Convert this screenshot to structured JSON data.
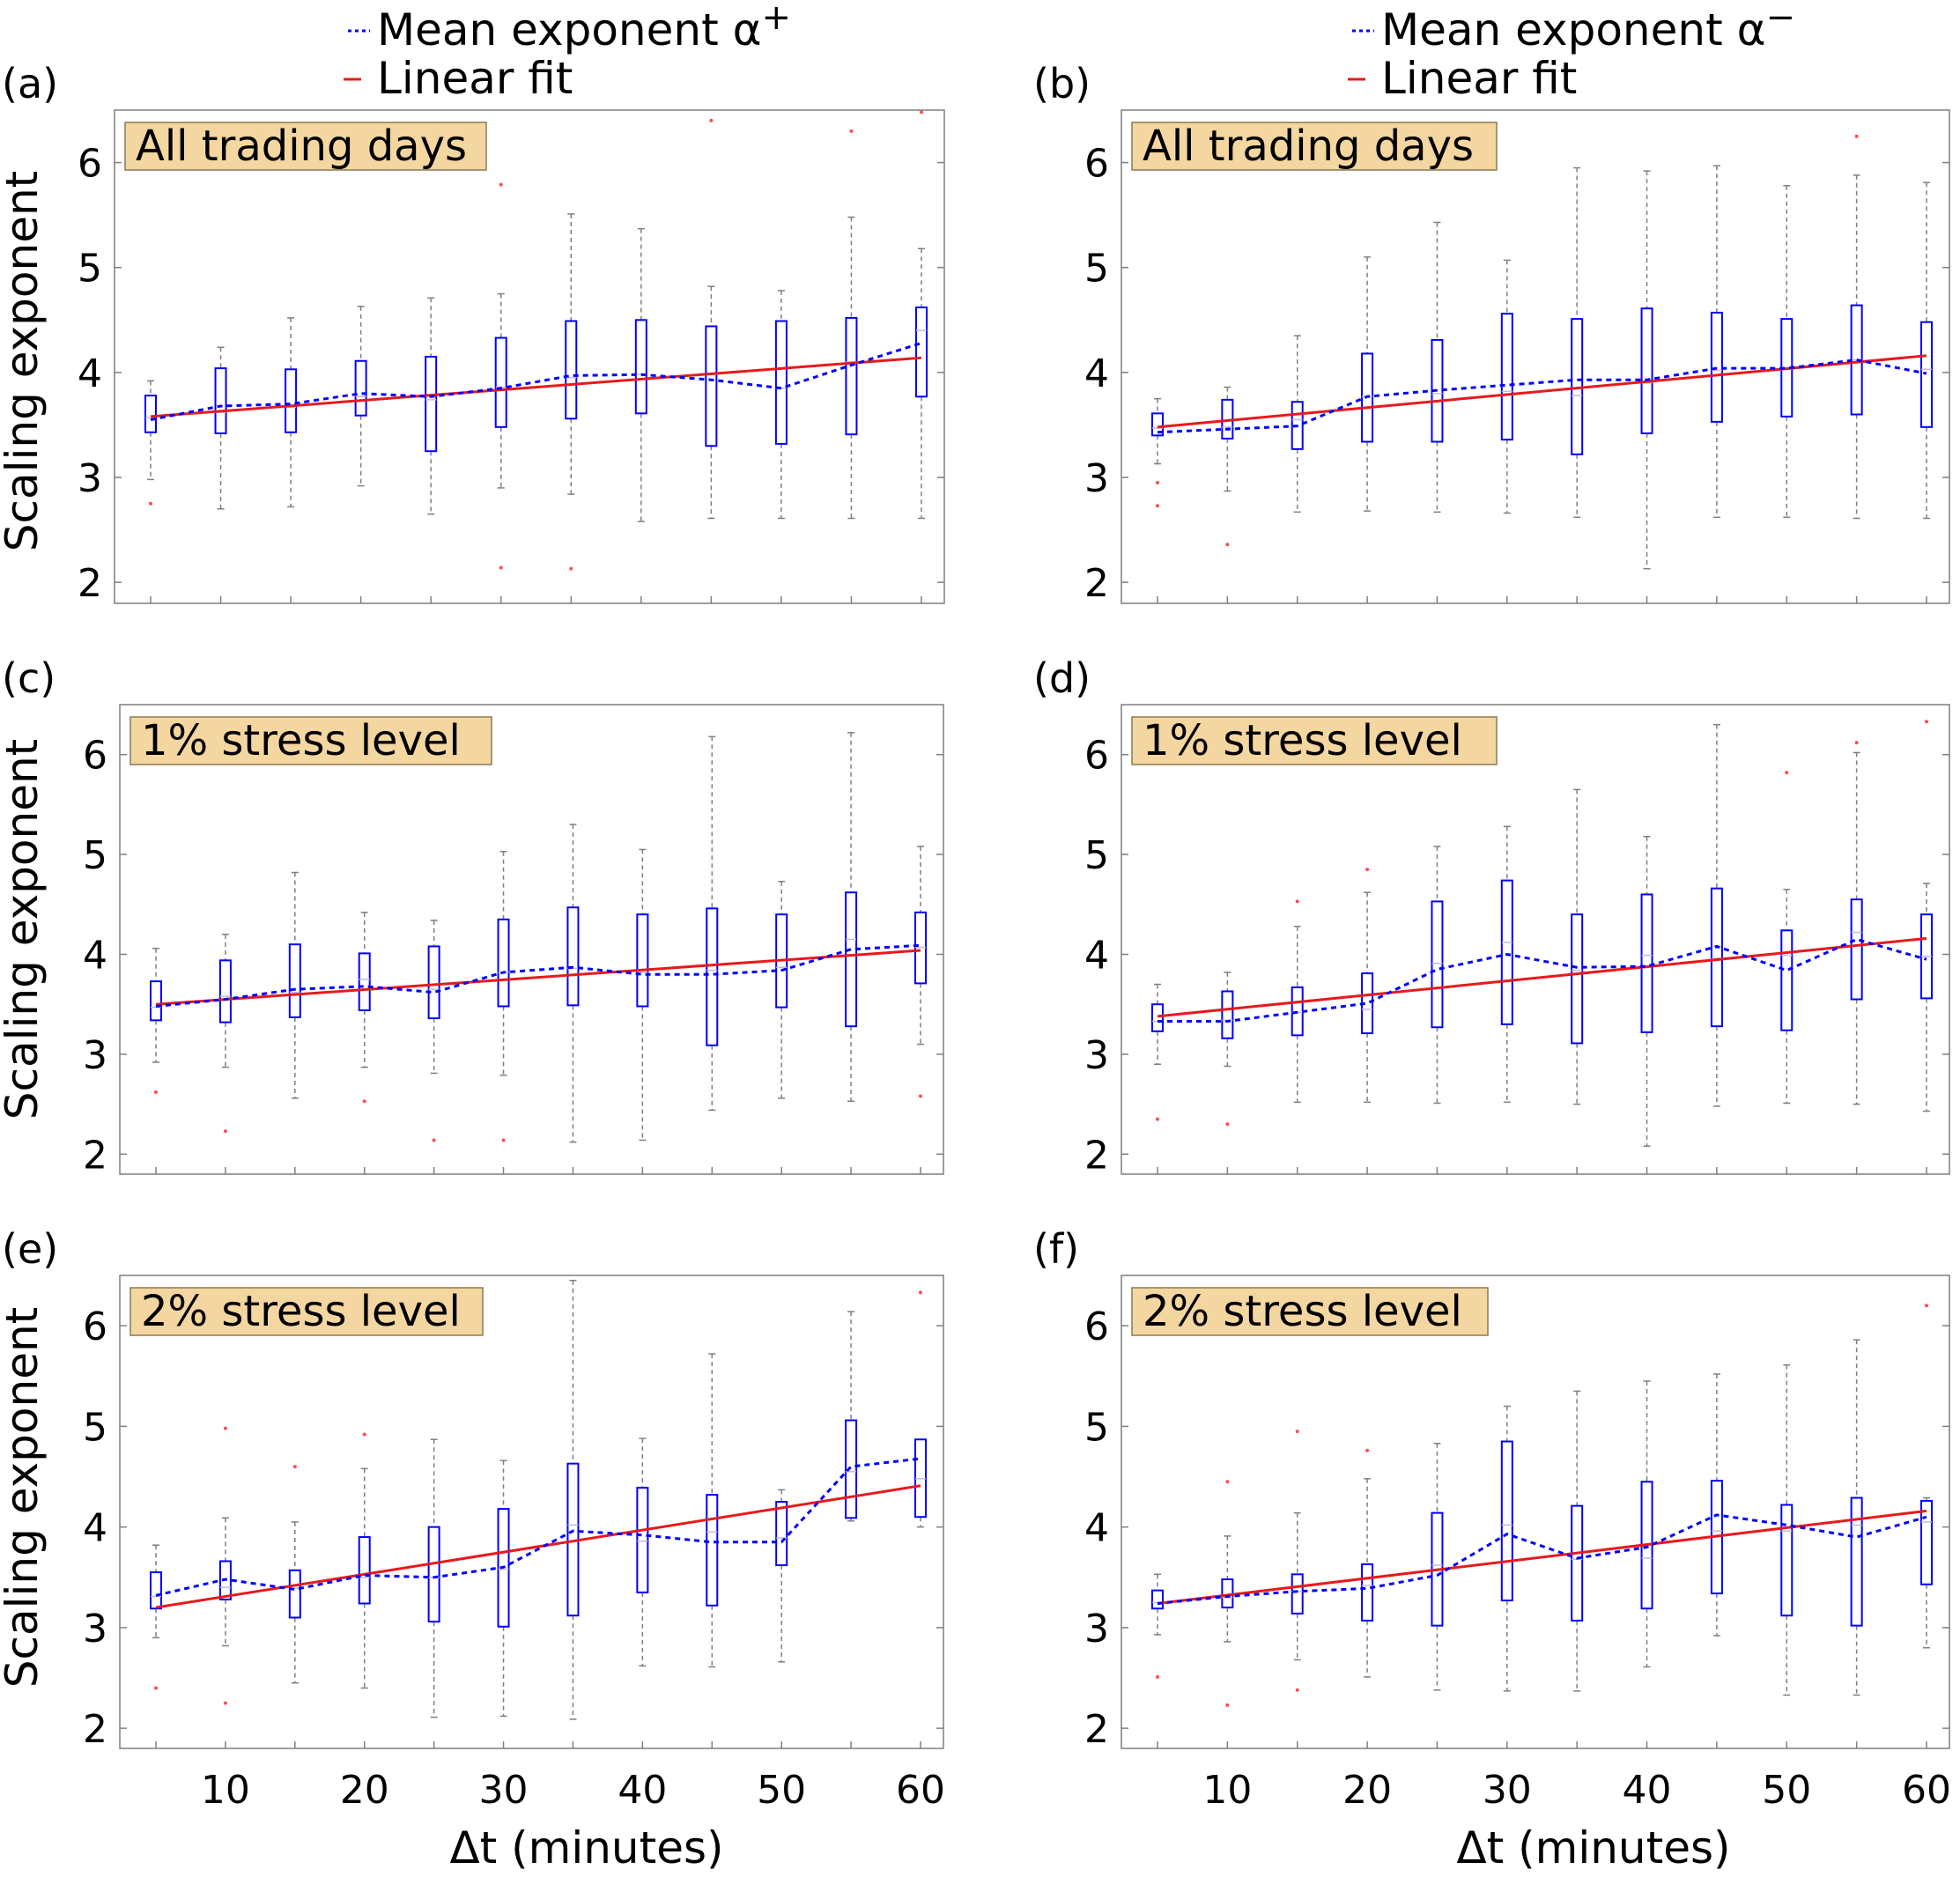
{
  "legends": [
    {
      "mean_label": "Mean exponent",
      "alpha": "α",
      "sign": "+",
      "fit_label": "Linear fit"
    },
    {
      "mean_label": "Mean exponent",
      "alpha": "α",
      "sign": "−",
      "fit_label": "Linear fit"
    }
  ],
  "axis": {
    "ylabel": "Scaling exponent",
    "xlabel": "Δt (minutes)",
    "ylim": [
      1.8,
      6.5
    ],
    "xlim": [
      0,
      62
    ],
    "yticks": [
      "2",
      "3",
      "4",
      "5",
      "6"
    ],
    "xticks": [
      "10",
      "20",
      "30",
      "40",
      "50",
      "60"
    ]
  },
  "colors": {
    "box": "#0000ff",
    "mean": "#0000ff",
    "fit": "#e8191c",
    "whisker": "#7f7f7f",
    "outlier": "#ff4d4d",
    "median": "#c8b8d8",
    "tag_fill": "#f4d6a0",
    "tag_border": "#8a7a55",
    "frame": "#7f7f7f"
  },
  "chart_data": [
    {
      "type": "box",
      "panel": "(a)",
      "tag": "All trading days",
      "x": [
        5,
        10,
        15,
        20,
        25,
        30,
        35,
        40,
        45,
        50,
        55,
        60
      ],
      "q1": [
        3.43,
        3.42,
        3.43,
        3.59,
        3.25,
        3.48,
        3.56,
        3.61,
        3.3,
        3.32,
        3.41,
        3.77
      ],
      "median": [
        3.57,
        3.62,
        3.67,
        3.77,
        3.74,
        3.86,
        3.95,
        3.98,
        3.98,
        3.85,
        4.1,
        4.4
      ],
      "q3": [
        3.78,
        4.04,
        4.03,
        4.11,
        4.15,
        4.33,
        4.49,
        4.5,
        4.44,
        4.49,
        4.52,
        4.62
      ],
      "wlo": [
        2.98,
        2.7,
        2.72,
        2.92,
        2.65,
        2.9,
        2.84,
        2.58,
        2.61,
        2.61,
        2.61,
        2.61
      ],
      "whi": [
        3.92,
        4.24,
        4.52,
        4.63,
        4.71,
        4.75,
        5.51,
        5.37,
        4.82,
        4.78,
        5.48,
        5.18
      ],
      "outliers": [
        [
          5,
          2.75
        ],
        [
          30,
          2.14
        ],
        [
          30,
          5.79
        ],
        [
          35,
          2.13
        ],
        [
          45,
          6.4
        ],
        [
          55,
          6.3
        ],
        [
          60,
          6.48
        ]
      ],
      "mean": [
        3.55,
        3.68,
        3.7,
        3.8,
        3.77,
        3.85,
        3.97,
        3.98,
        3.93,
        3.85,
        4.07,
        4.28
      ],
      "fit": {
        "x0": 5,
        "y0": 3.58,
        "x1": 60,
        "y1": 4.14
      }
    },
    {
      "type": "box",
      "panel": "(b)",
      "tag": "All trading days",
      "x": [
        5,
        10,
        15,
        20,
        25,
        30,
        35,
        40,
        45,
        50,
        55,
        60
      ],
      "q1": [
        3.4,
        3.37,
        3.27,
        3.34,
        3.34,
        3.36,
        3.22,
        3.42,
        3.53,
        3.58,
        3.6,
        3.48
      ],
      "median": [
        3.47,
        3.48,
        3.55,
        3.77,
        3.8,
        3.82,
        3.78,
        3.9,
        4.02,
        4.03,
        4.12,
        4.03
      ],
      "q3": [
        3.61,
        3.74,
        3.72,
        4.18,
        4.31,
        4.56,
        4.51,
        4.61,
        4.57,
        4.51,
        4.64,
        4.48
      ],
      "wlo": [
        3.13,
        2.87,
        2.67,
        2.68,
        2.67,
        2.66,
        2.62,
        2.13,
        2.62,
        2.62,
        2.61,
        2.61
      ],
      "whi": [
        3.75,
        3.86,
        4.35,
        5.1,
        5.43,
        5.07,
        5.95,
        5.92,
        5.97,
        5.78,
        5.88,
        5.81
      ],
      "outliers": [
        [
          5,
          2.95
        ],
        [
          5,
          2.73
        ],
        [
          10,
          2.36
        ],
        [
          55,
          6.25
        ]
      ],
      "mean": [
        3.43,
        3.46,
        3.49,
        3.77,
        3.83,
        3.88,
        3.93,
        3.93,
        4.04,
        4.04,
        4.12,
        3.99
      ],
      "fit": {
        "x0": 5,
        "y0": 3.48,
        "x1": 60,
        "y1": 4.16
      }
    },
    {
      "type": "box",
      "panel": "(c)",
      "tag": "1% stress level",
      "x": [
        5,
        10,
        15,
        20,
        25,
        30,
        35,
        40,
        45,
        50,
        55,
        60
      ],
      "q1": [
        3.34,
        3.32,
        3.37,
        3.44,
        3.36,
        3.48,
        3.49,
        3.48,
        3.09,
        3.47,
        3.28,
        3.71
      ],
      "median": [
        3.47,
        3.58,
        3.62,
        3.75,
        3.65,
        3.82,
        3.86,
        3.82,
        3.84,
        3.87,
        4.15,
        4.07
      ],
      "q3": [
        3.73,
        3.94,
        4.1,
        4.01,
        4.08,
        4.35,
        4.47,
        4.4,
        4.46,
        4.4,
        4.62,
        4.42
      ],
      "wlo": [
        2.92,
        2.87,
        2.56,
        2.87,
        2.81,
        2.79,
        2.12,
        2.14,
        2.44,
        2.56,
        2.53,
        3.1
      ],
      "whi": [
        4.06,
        4.2,
        4.82,
        4.42,
        4.34,
        5.03,
        5.3,
        5.05,
        6.18,
        4.73,
        6.22,
        5.08
      ],
      "outliers": [
        [
          5,
          2.62
        ],
        [
          10,
          2.23
        ],
        [
          20,
          2.53
        ],
        [
          25,
          2.14
        ],
        [
          30,
          2.14
        ],
        [
          60,
          2.58
        ]
      ],
      "mean": [
        3.48,
        3.55,
        3.65,
        3.68,
        3.62,
        3.82,
        3.87,
        3.8,
        3.8,
        3.84,
        4.05,
        4.09
      ],
      "fit": {
        "x0": 5,
        "y0": 3.5,
        "x1": 60,
        "y1": 4.04
      }
    },
    {
      "type": "box",
      "panel": "(d)",
      "tag": "1% stress level",
      "x": [
        5,
        10,
        15,
        20,
        25,
        30,
        35,
        40,
        45,
        50,
        55,
        60
      ],
      "q1": [
        3.23,
        3.16,
        3.19,
        3.21,
        3.27,
        3.3,
        3.11,
        3.22,
        3.28,
        3.24,
        3.55,
        3.56
      ],
      "median": [
        3.33,
        3.34,
        3.42,
        3.45,
        3.91,
        4.12,
        3.84,
        3.99,
        3.96,
        3.99,
        4.22,
        3.98
      ],
      "q3": [
        3.5,
        3.63,
        3.67,
        3.81,
        4.53,
        4.74,
        4.4,
        4.6,
        4.66,
        4.24,
        4.55,
        4.4
      ],
      "wlo": [
        2.9,
        2.88,
        2.52,
        2.52,
        2.51,
        2.52,
        2.5,
        2.08,
        2.48,
        2.51,
        2.5,
        2.43
      ],
      "whi": [
        3.7,
        3.82,
        4.28,
        4.62,
        5.08,
        5.28,
        5.65,
        5.18,
        6.3,
        4.65,
        6.02,
        4.71
      ],
      "outliers": [
        [
          5,
          2.35
        ],
        [
          10,
          2.3
        ],
        [
          15,
          4.53
        ],
        [
          20,
          4.85
        ],
        [
          50,
          5.82
        ],
        [
          55,
          6.12
        ],
        [
          60,
          6.33
        ]
      ],
      "mean": [
        3.33,
        3.33,
        3.42,
        3.51,
        3.85,
        4.0,
        3.87,
        3.88,
        4.08,
        3.84,
        4.15,
        3.95
      ],
      "fit": {
        "x0": 5,
        "y0": 3.38,
        "x1": 60,
        "y1": 4.16
      }
    },
    {
      "type": "box",
      "panel": "(e)",
      "tag": "2% stress level",
      "x": [
        5,
        10,
        15,
        20,
        25,
        30,
        35,
        40,
        45,
        50,
        55,
        60
      ],
      "q1": [
        3.19,
        3.28,
        3.1,
        3.24,
        3.06,
        3.01,
        3.12,
        3.35,
        3.22,
        3.62,
        4.09,
        4.1
      ],
      "median": [
        3.31,
        3.4,
        3.39,
        3.5,
        3.5,
        3.58,
        4.02,
        3.86,
        3.95,
        3.89,
        4.55,
        4.48
      ],
      "q3": [
        3.55,
        3.66,
        3.57,
        3.9,
        4.0,
        4.18,
        4.63,
        4.39,
        4.32,
        4.25,
        5.06,
        4.87
      ],
      "wlo": [
        2.9,
        2.82,
        2.45,
        2.4,
        2.11,
        2.12,
        2.09,
        2.62,
        2.61,
        2.66,
        4.06,
        4.0
      ],
      "whi": [
        3.82,
        4.09,
        4.05,
        4.58,
        4.87,
        4.66,
        6.45,
        4.88,
        5.72,
        4.37,
        6.14,
        4.87
      ],
      "outliers": [
        [
          5,
          2.4
        ],
        [
          10,
          2.25
        ],
        [
          10,
          4.98
        ],
        [
          15,
          4.6
        ],
        [
          20,
          4.92
        ],
        [
          60,
          6.33
        ]
      ],
      "mean": [
        3.32,
        3.48,
        3.38,
        3.52,
        3.5,
        3.6,
        3.96,
        3.92,
        3.85,
        3.85,
        4.6,
        4.68
      ],
      "fit": {
        "x0": 5,
        "y0": 3.2,
        "x1": 60,
        "y1": 4.41
      }
    },
    {
      "type": "box",
      "panel": "(f)",
      "tag": "2% stress level",
      "x": [
        5,
        10,
        15,
        20,
        25,
        30,
        35,
        40,
        45,
        50,
        55,
        60
      ],
      "q1": [
        3.19,
        3.2,
        3.14,
        3.07,
        3.02,
        3.27,
        3.07,
        3.19,
        3.34,
        3.12,
        3.02,
        3.43
      ],
      "median": [
        3.25,
        3.3,
        3.36,
        3.42,
        3.62,
        4.02,
        3.68,
        3.69,
        3.96,
        3.96,
        4.02,
        4.05
      ],
      "q3": [
        3.37,
        3.48,
        3.53,
        3.63,
        4.14,
        4.85,
        4.21,
        4.45,
        4.46,
        4.22,
        4.29,
        4.26
      ],
      "wlo": [
        2.93,
        2.86,
        2.68,
        2.51,
        2.38,
        2.37,
        2.37,
        2.61,
        2.92,
        2.33,
        2.33,
        2.8
      ],
      "whi": [
        3.53,
        3.91,
        4.14,
        4.48,
        4.83,
        5.2,
        5.35,
        5.45,
        5.52,
        5.61,
        5.86,
        4.29
      ],
      "outliers": [
        [
          5,
          2.51
        ],
        [
          10,
          2.23
        ],
        [
          10,
          4.45
        ],
        [
          15,
          2.38
        ],
        [
          15,
          4.95
        ],
        [
          20,
          4.76
        ],
        [
          60,
          6.2
        ]
      ],
      "mean": [
        3.24,
        3.31,
        3.36,
        3.39,
        3.52,
        3.93,
        3.69,
        3.8,
        4.12,
        4.02,
        3.9,
        4.1
      ],
      "fit": {
        "x0": 5,
        "y0": 3.24,
        "x1": 60,
        "y1": 4.16
      }
    }
  ]
}
